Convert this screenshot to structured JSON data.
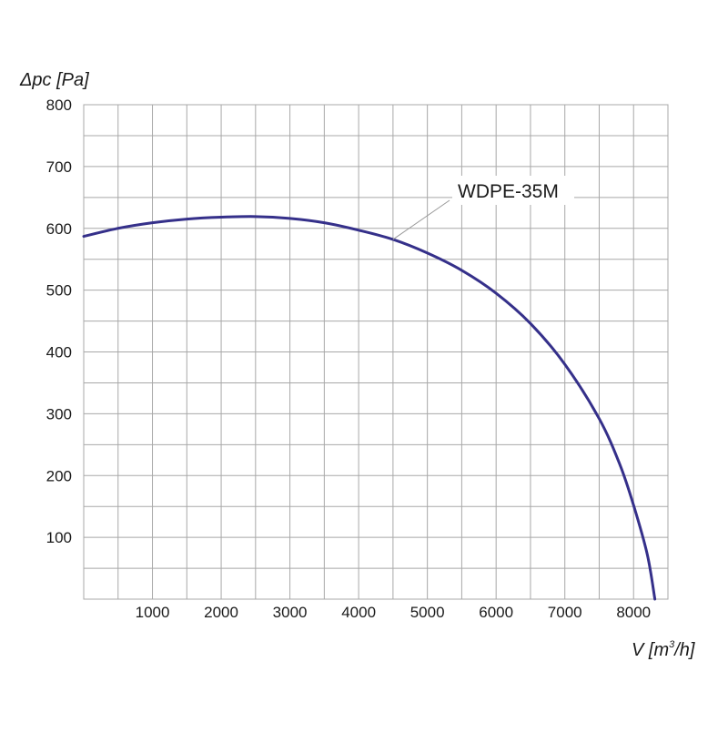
{
  "chart_data": {
    "type": "line",
    "title": "",
    "ylabel": "Δpc [Pa]",
    "xlabel_main": "V [m",
    "xlabel_sup": "3",
    "xlabel_tail": "/h]",
    "xlim": [
      0,
      8500
    ],
    "ylim": [
      0,
      800
    ],
    "x_ticks": [
      1000,
      2000,
      3000,
      4000,
      5000,
      6000,
      7000,
      8000
    ],
    "x_tick_labels": [
      "1000",
      "2000",
      "3000",
      "4000",
      "5000",
      "6000",
      "7000",
      "8000"
    ],
    "y_ticks": [
      100,
      200,
      300,
      400,
      500,
      600,
      700,
      800
    ],
    "y_tick_labels": [
      "100",
      "200",
      "300",
      "400",
      "500",
      "600",
      "700",
      "800"
    ],
    "x_minor_step": 500,
    "y_minor_step": 50,
    "grid": true,
    "line_color": "#35308a",
    "grid_color": "#a8a8a8",
    "series": [
      {
        "name": "WDPE-35M",
        "x": [
          0,
          500,
          1000,
          1500,
          2000,
          2500,
          3000,
          3500,
          4000,
          4500,
          5000,
          5500,
          6000,
          6500,
          7000,
          7500,
          7800,
          8000,
          8200,
          8310
        ],
        "y": [
          587,
          600,
          609,
          615,
          618,
          619,
          616,
          609,
          597,
          582,
          560,
          532,
          495,
          446,
          380,
          292,
          218,
          152,
          72,
          0
        ]
      }
    ],
    "annotations": [
      {
        "text": "WDPE-35M",
        "series": "WDPE-35M",
        "at_x": 4500
      }
    ]
  }
}
